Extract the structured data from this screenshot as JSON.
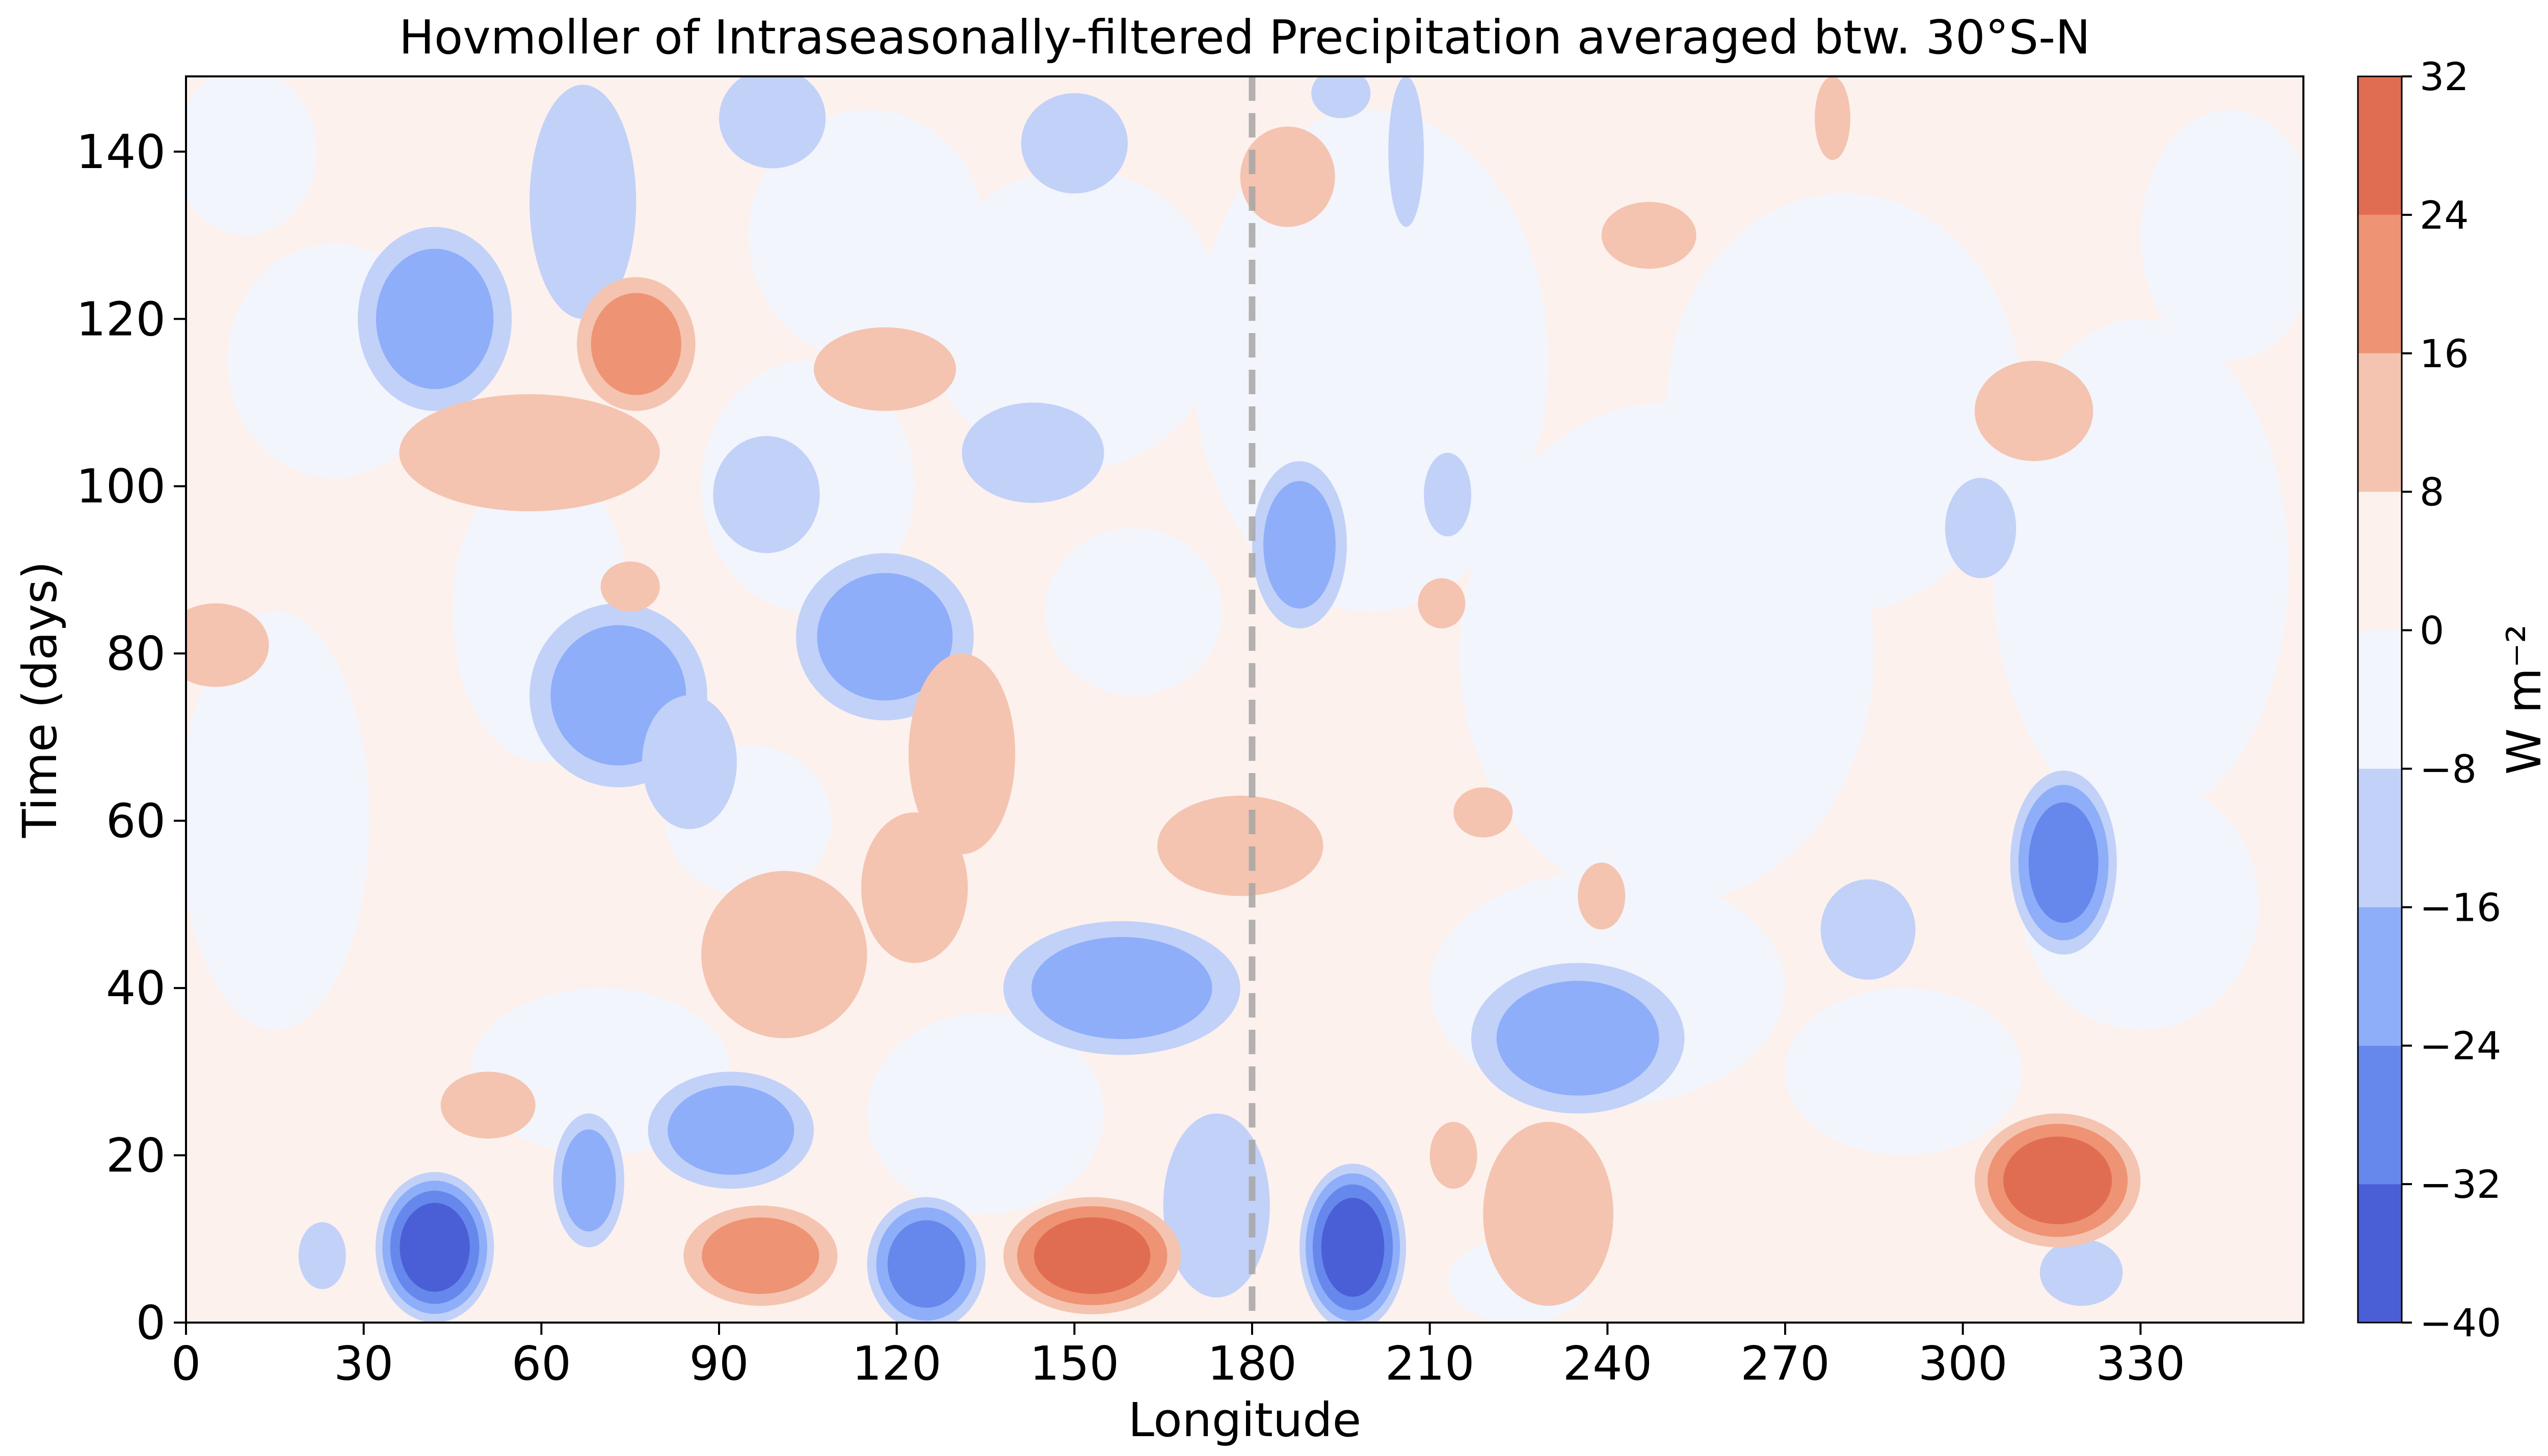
{
  "chart_data": {
    "type": "heatmap",
    "subtype": "filled-contour hovmoller",
    "title": "Hovmoller of Intraseasonally-filtered Precipitation averaged btw. 30°S-N",
    "xlabel": "Longitude",
    "ylabel": "Time (days)",
    "xlim": [
      0,
      357.5
    ],
    "ylim": [
      0,
      149
    ],
    "xticks": [
      0,
      30,
      60,
      90,
      120,
      150,
      180,
      210,
      240,
      270,
      300,
      330
    ],
    "xtick_labels": [
      "0",
      "30",
      "60",
      "90",
      "120",
      "150",
      "180",
      "210",
      "240",
      "270",
      "300",
      "330"
    ],
    "yticks": [
      0,
      20,
      40,
      60,
      80,
      100,
      120,
      140
    ],
    "ytick_labels": [
      "0",
      "20",
      "40",
      "60",
      "80",
      "100",
      "120",
      "140"
    ],
    "grid": false,
    "reference_line": {
      "x": 180,
      "style": "dashed",
      "color": "#a6a6a6"
    },
    "colorbar": {
      "label": "W m⁻²",
      "position": "right",
      "levels": [
        -40,
        -32,
        -24,
        -16,
        -8,
        0,
        8,
        16,
        24,
        32
      ],
      "tick_labels": [
        "−40",
        "−32",
        "−24",
        "−16",
        "−8",
        "0",
        "8",
        "16",
        "24",
        "32"
      ],
      "colors": [
        "#4a5fd6",
        "#6687ec",
        "#8eaefa",
        "#c1d1f8",
        "#f2f5fc",
        "#fdf1ee",
        "#f5c4b1",
        "#ef9375",
        "#e06c51"
      ]
    },
    "anomalies": [
      {
        "lon": 42,
        "day": 9,
        "rx": 10,
        "ry": 9,
        "value": -38
      },
      {
        "lon": 125,
        "day": 7,
        "rx": 10,
        "ry": 8,
        "value": -30
      },
      {
        "lon": 197,
        "day": 9,
        "rx": 9,
        "ry": 10,
        "value": -32
      },
      {
        "lon": 92,
        "day": 23,
        "rx": 14,
        "ry": 7,
        "value": -22
      },
      {
        "lon": 68,
        "day": 17,
        "rx": 6,
        "ry": 8,
        "value": -17
      },
      {
        "lon": 158,
        "day": 40,
        "rx": 20,
        "ry": 8,
        "value": -22
      },
      {
        "lon": 235,
        "day": 34,
        "rx": 18,
        "ry": 9,
        "value": -22
      },
      {
        "lon": 317,
        "day": 55,
        "rx": 9,
        "ry": 11,
        "value": -24
      },
      {
        "lon": 118,
        "day": 82,
        "rx": 15,
        "ry": 10,
        "value": -22
      },
      {
        "lon": 73,
        "day": 75,
        "rx": 15,
        "ry": 11,
        "value": -18
      },
      {
        "lon": 42,
        "day": 120,
        "rx": 13,
        "ry": 11,
        "value": -18
      },
      {
        "lon": 67,
        "day": 134,
        "rx": 9,
        "ry": 14,
        "value": -13
      },
      {
        "lon": 98,
        "day": 99,
        "rx": 9,
        "ry": 7,
        "value": -13
      },
      {
        "lon": 150,
        "day": 141,
        "rx": 9,
        "ry": 6,
        "value": -13
      },
      {
        "lon": 99,
        "day": 144,
        "rx": 9,
        "ry": 6,
        "value": -12
      },
      {
        "lon": 188,
        "day": 93,
        "rx": 8,
        "ry": 10,
        "value": -18
      },
      {
        "lon": 213,
        "day": 99,
        "rx": 4,
        "ry": 5,
        "value": -11
      },
      {
        "lon": 85,
        "day": 67,
        "rx": 8,
        "ry": 8,
        "value": -11
      },
      {
        "lon": 143,
        "day": 104,
        "rx": 12,
        "ry": 6,
        "value": -11
      },
      {
        "lon": 174,
        "day": 14,
        "rx": 9,
        "ry": 11,
        "value": -11
      },
      {
        "lon": 284,
        "day": 47,
        "rx": 8,
        "ry": 6,
        "value": -11
      },
      {
        "lon": 303,
        "day": 95,
        "rx": 6,
        "ry": 6,
        "value": -10
      },
      {
        "lon": 320,
        "day": 6,
        "rx": 7,
        "ry": 4,
        "value": -11
      },
      {
        "lon": 23,
        "day": 8,
        "rx": 4,
        "ry": 4,
        "value": -10
      },
      {
        "lon": 206,
        "day": 140,
        "rx": 3,
        "ry": 9,
        "value": -11
      },
      {
        "lon": 195,
        "day": 147,
        "rx": 5,
        "ry": 3,
        "value": -10
      },
      {
        "lon": 153,
        "day": 8,
        "rx": 15,
        "ry": 7,
        "value": 26
      },
      {
        "lon": 97,
        "day": 8,
        "rx": 13,
        "ry": 6,
        "value": 17
      },
      {
        "lon": 316,
        "day": 17,
        "rx": 14,
        "ry": 8,
        "value": 24
      },
      {
        "lon": 230,
        "day": 13,
        "rx": 11,
        "ry": 11,
        "value": 12
      },
      {
        "lon": 101,
        "day": 44,
        "rx": 14,
        "ry": 10,
        "value": 13
      },
      {
        "lon": 123,
        "day": 52,
        "rx": 9,
        "ry": 9,
        "value": 10
      },
      {
        "lon": 131,
        "day": 68,
        "rx": 9,
        "ry": 12,
        "value": 11
      },
      {
        "lon": 178,
        "day": 57,
        "rx": 14,
        "ry": 6,
        "value": 12
      },
      {
        "lon": 58,
        "day": 104,
        "rx": 22,
        "ry": 7,
        "value": 12
      },
      {
        "lon": 76,
        "day": 117,
        "rx": 10,
        "ry": 8,
        "value": 17
      },
      {
        "lon": 118,
        "day": 114,
        "rx": 12,
        "ry": 5,
        "value": 13
      },
      {
        "lon": 186,
        "day": 137,
        "rx": 8,
        "ry": 6,
        "value": 12
      },
      {
        "lon": 247,
        "day": 130,
        "rx": 8,
        "ry": 4,
        "value": 11
      },
      {
        "lon": 312,
        "day": 109,
        "rx": 10,
        "ry": 6,
        "value": 12
      },
      {
        "lon": 5,
        "day": 81,
        "rx": 9,
        "ry": 5,
        "value": 11
      },
      {
        "lon": 51,
        "day": 26,
        "rx": 8,
        "ry": 4,
        "value": 10
      },
      {
        "lon": 75,
        "day": 88,
        "rx": 5,
        "ry": 3,
        "value": 10
      },
      {
        "lon": 212,
        "day": 86,
        "rx": 4,
        "ry": 3,
        "value": 9
      },
      {
        "lon": 219,
        "day": 61,
        "rx": 5,
        "ry": 3,
        "value": 9
      },
      {
        "lon": 239,
        "day": 51,
        "rx": 4,
        "ry": 4,
        "value": 9
      },
      {
        "lon": 278,
        "day": 144,
        "rx": 3,
        "ry": 5,
        "value": 9
      },
      {
        "lon": 214,
        "day": 20,
        "rx": 4,
        "ry": 4,
        "value": 9
      }
    ]
  }
}
